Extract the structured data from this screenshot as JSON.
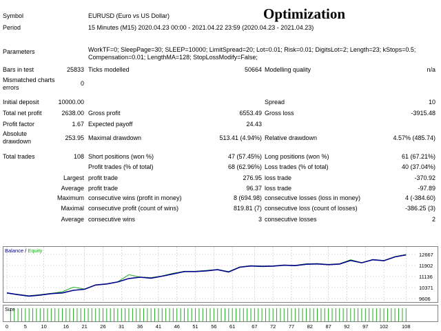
{
  "header": {
    "title": "Optimization"
  },
  "rows": {
    "symbol": {
      "label": "Symbol",
      "value": "EURUSD (Euro vs US Dollar)"
    },
    "period": {
      "label": "Period",
      "value": "15 Minutes (M15) 2020.04.23 00:00 - 2021.04.22 23:59 (2020.04.23 - 2021.04.23)"
    },
    "parameters": {
      "label": "Parameters",
      "line1": "WorkTF=0; SleepPage=30; SLEEP=10000; LimitSpread=20; Lot=0.01; Risk=0.01; DigitsLot=2; Length=23; kStops=0.5;",
      "line2": "Compensation=0.01; LengthMA=128; StopLossModify=False;"
    },
    "bars": {
      "label": "Bars in test",
      "value": "25833",
      "ticks_label": "Ticks modelled",
      "ticks_value": "50664",
      "quality_label": "Modelling quality",
      "quality_value": "n/a"
    },
    "mismatched": {
      "label1": "Mismatched charts",
      "label2": "errors",
      "value": "0"
    },
    "deposit": {
      "label": "Initial deposit",
      "value": "10000.00",
      "spread_label": "Spread",
      "spread_value": "10"
    },
    "net_profit": {
      "label": "Total net profit",
      "value": "2638.00",
      "gp_label": "Gross profit",
      "gp_value": "6553.49",
      "gl_label": "Gross loss",
      "gl_value": "-3915.48"
    },
    "profit_factor": {
      "label": "Profit factor",
      "value": "1.67",
      "ep_label": "Expected payoff",
      "ep_value": "24.43"
    },
    "abs_drawdown": {
      "label1": "Absolute",
      "label2": "drawdown",
      "value": "253.95",
      "md_label": "Maximal drawdown",
      "md_value": "513.41 (4.94%)",
      "rd_label": "Relative drawdown",
      "rd_value": "4.57% (485.74)"
    },
    "total_trades": {
      "label": "Total trades",
      "value": "108",
      "sp_label": "Short positions (won %)",
      "sp_value": "47 (57.45%)",
      "lp_label": "Long positions (won %)",
      "lp_value": "61 (67.21%)"
    },
    "profit_trades": {
      "pt_label": "Profit trades (% of total)",
      "pt_value": "68 (62.96%)",
      "lt_label": "Loss trades (% of total)",
      "lt_value": "40 (37.04%)"
    },
    "largest": {
      "label": "Largest",
      "pt_label": "profit trade",
      "pt_value": "276.95",
      "lt_label": "loss trade",
      "lt_value": "-370.92"
    },
    "average": {
      "label": "Average",
      "pt_label": "profit trade",
      "pt_value": "96.37",
      "lt_label": "loss trade",
      "lt_value": "-97.89"
    },
    "maximum": {
      "label": "Maximum",
      "cw_label": "consecutive wins (profit in money)",
      "cw_value": "8 (694.98)",
      "cl_label": "consecutive losses (loss in money)",
      "cl_value": "4 (-384.60)"
    },
    "maximal": {
      "label": "Maximal",
      "cp_label": "consecutive profit (count of wins)",
      "cp_value": "819.81 (7)",
      "cl_label": "consecutive loss (count of losses)",
      "cl_value": "-386.25 (3)"
    },
    "average2": {
      "label": "Average",
      "cw_label": "consecutive wins",
      "cw_value": "3",
      "cl_label": "consecutive losses",
      "cl_value": "2"
    }
  },
  "chart": {
    "legend_balance": "Balance",
    "legend_sep": " / ",
    "legend_equity": "Equity",
    "size_label": "Size",
    "colors": {
      "balance": "#00008b",
      "equity": "#22aa22",
      "size_bar": "#22aa22",
      "grid": "#c0c0c0",
      "frame": "#808080"
    }
  },
  "chart_data": {
    "type": "line",
    "xlim": [
      0,
      110
    ],
    "ylim": [
      9606,
      12667
    ],
    "x_ticks": [
      0,
      5,
      10,
      16,
      21,
      26,
      31,
      36,
      41,
      46,
      51,
      56,
      61,
      67,
      72,
      77,
      82,
      87,
      92,
      97,
      102,
      108
    ],
    "y_ticks": [
      12667,
      11902,
      11136,
      10371,
      9606
    ],
    "series": [
      {
        "name": "Balance",
        "x": [
          0,
          3,
          6,
          9,
          12,
          15,
          18,
          21,
          24,
          27,
          30,
          33,
          36,
          39,
          42,
          45,
          48,
          51,
          54,
          57,
          60,
          63,
          66,
          69,
          72,
          75,
          78,
          81,
          84,
          87,
          90,
          93,
          96,
          99,
          102,
          105,
          108
        ],
        "values": [
          10000,
          9880,
          9780,
          9850,
          9950,
          10000,
          10180,
          10250,
          10550,
          10620,
          10760,
          11000,
          11090,
          11020,
          11160,
          11320,
          11480,
          11480,
          11530,
          11610,
          11450,
          11780,
          11870,
          11840,
          11860,
          11920,
          11890,
          11990,
          12010,
          11960,
          12000,
          12250,
          12090,
          12300,
          12230,
          12500,
          12640
        ]
      },
      {
        "name": "Equity",
        "x": [
          0,
          3,
          6,
          9,
          12,
          15,
          18,
          21,
          24,
          27,
          30,
          33,
          36,
          39,
          42,
          45,
          48,
          51,
          54,
          57,
          60,
          63,
          66,
          69,
          72,
          75,
          78,
          81,
          84,
          87,
          90,
          93,
          96,
          99,
          102,
          105,
          108
        ],
        "values": [
          10000,
          9900,
          9800,
          9880,
          9970,
          10080,
          10400,
          10270,
          10560,
          10630,
          10780,
          11260,
          11100,
          11060,
          11180,
          11360,
          11500,
          11500,
          11560,
          11630,
          11480,
          11800,
          11890,
          11870,
          11880,
          11930,
          11910,
          12020,
          12030,
          11980,
          12020,
          12300,
          12100,
          12320,
          12250,
          12520,
          12667
        ]
      }
    ],
    "size_bars": {
      "count": 108
    }
  }
}
